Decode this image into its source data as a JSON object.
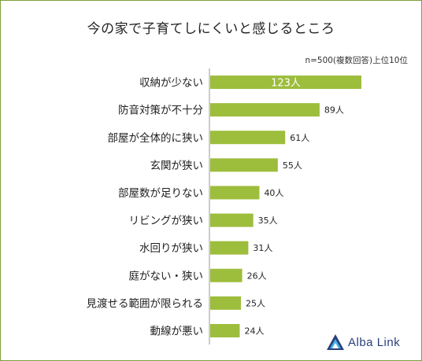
{
  "chart_data": {
    "type": "bar",
    "orientation": "horizontal",
    "title": "今の家で子育てしにくいと感じるところ",
    "note": "n=500(複数回答)上位10位",
    "categories": [
      "収納が少ない",
      "防音対策が不十分",
      "部屋が全体的に狭い",
      "玄関が狭い",
      "部屋数が足りない",
      "リビングが狭い",
      "水回りが狭い",
      "庭がない・狭い",
      "見渡せる範囲が限られる",
      "動線が悪い"
    ],
    "values": [
      123,
      89,
      61,
      55,
      40,
      35,
      31,
      26,
      25,
      24
    ],
    "value_labels": [
      "123人",
      "89人",
      "61人",
      "55人",
      "40人",
      "35人",
      "31人",
      "26人",
      "25人",
      "24人"
    ],
    "bar_color": "#9dbd3c",
    "axis_line": true,
    "grid": false
  },
  "logo": {
    "text": "Alba Link",
    "color": "#2a3f7a"
  }
}
